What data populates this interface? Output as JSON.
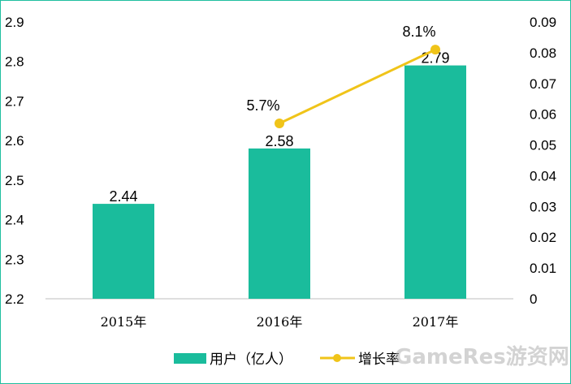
{
  "chart_data": {
    "type": "bar+line",
    "categories": [
      "2015年",
      "2016年",
      "2017年"
    ],
    "series": [
      {
        "name": "用户（亿人）",
        "kind": "bar",
        "axis": "left",
        "values": [
          2.44,
          2.58,
          2.79
        ],
        "labels": [
          "2.44",
          "2.58",
          "2.79"
        ],
        "color": "#1abc9c"
      },
      {
        "name": "增长率",
        "kind": "line",
        "axis": "right",
        "points": [
          {
            "category": "2016年",
            "value": 0.057,
            "label": "5.7%"
          },
          {
            "category": "2017年",
            "value": 0.081,
            "label": "8.1%"
          }
        ],
        "color": "#f0c419"
      }
    ],
    "y_left": {
      "lim": [
        2.2,
        2.9
      ],
      "ticks": [
        "2.2",
        "2.3",
        "2.4",
        "2.5",
        "2.6",
        "2.7",
        "2.8",
        "2.9"
      ]
    },
    "y_right": {
      "lim": [
        0,
        0.09
      ],
      "ticks": [
        "0",
        "0.01",
        "0.02",
        "0.03",
        "0.04",
        "0.05",
        "0.06",
        "0.07",
        "0.08",
        "0.09"
      ]
    },
    "grid": false,
    "legend_position": "bottom",
    "title": "",
    "xlabel": "",
    "ylabel": ""
  },
  "legend": {
    "bar_label": "用户（亿人）",
    "line_label": "增长率"
  },
  "watermark": {
    "text": "GameRes游资网"
  },
  "colors": {
    "bar": "#1abc9c",
    "line": "#f0c419",
    "frame": "#1fbf9f",
    "axis": "#bfbfbf"
  }
}
